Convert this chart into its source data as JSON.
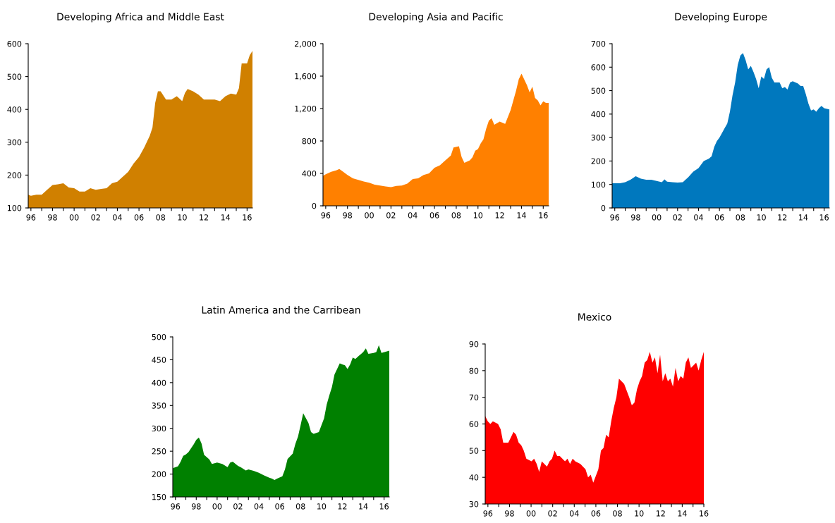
{
  "chart_data": [
    {
      "type": "area",
      "title": "Developing Africa and Middle East",
      "xlim": [
        1995.75,
        2016.5
      ],
      "ylim": [
        100,
        600
      ],
      "yticks": [
        100,
        200,
        300,
        400,
        500,
        600
      ],
      "xticks": [
        {
          "value": 1996,
          "label": "96"
        },
        {
          "value": 1997,
          "label": null
        },
        {
          "value": 1998,
          "label": "98"
        },
        {
          "value": 1999,
          "label": null
        },
        {
          "value": 2000,
          "label": "00"
        },
        {
          "value": 2001,
          "label": null
        },
        {
          "value": 2002,
          "label": "02"
        },
        {
          "value": 2003,
          "label": null
        },
        {
          "value": 2004,
          "label": "04"
        },
        {
          "value": 2005,
          "label": null
        },
        {
          "value": 2006,
          "label": "06"
        },
        {
          "value": 2007,
          "label": null
        },
        {
          "value": 2008,
          "label": "08"
        },
        {
          "value": 2009,
          "label": null
        },
        {
          "value": 2010,
          "label": "10"
        },
        {
          "value": 2011,
          "label": null
        },
        {
          "value": 2012,
          "label": "12"
        },
        {
          "value": 2013,
          "label": null
        },
        {
          "value": 2014,
          "label": "14"
        },
        {
          "value": 2015,
          "label": null
        },
        {
          "value": 2016,
          "label": "16"
        }
      ],
      "grid": false,
      "legend": false,
      "series": [
        {
          "color": "#d08000",
          "x": [
            1995.75,
            1996,
            1996.5,
            1997,
            1997.5,
            1998,
            1998.5,
            1999,
            1999.5,
            2000,
            2000.5,
            2001,
            2001.5,
            2002,
            2002.5,
            2003,
            2003.5,
            2004,
            2004.5,
            2005,
            2005.5,
            2006,
            2006.5,
            2007,
            2007.25,
            2007.5,
            2007.75,
            2008,
            2008.5,
            2009,
            2009.5,
            2010,
            2010.25,
            2010.5,
            2011,
            2011.5,
            2012,
            2012.5,
            2013,
            2013.5,
            2014,
            2014.5,
            2015,
            2015.25,
            2015.5,
            2016,
            2016.25,
            2016.5
          ],
          "values": [
            140,
            137,
            140,
            140,
            155,
            170,
            172,
            175,
            162,
            160,
            150,
            150,
            160,
            155,
            158,
            160,
            175,
            180,
            195,
            210,
            235,
            255,
            285,
            320,
            345,
            420,
            455,
            455,
            430,
            430,
            440,
            425,
            450,
            462,
            455,
            445,
            430,
            430,
            430,
            425,
            440,
            448,
            445,
            465,
            540,
            540,
            565,
            578
          ]
        }
      ]
    },
    {
      "type": "area",
      "title": "Developing Asia and Pacific",
      "xlim": [
        1995.75,
        2016.5
      ],
      "ylim": [
        0,
        2000
      ],
      "yticks": [
        0,
        400,
        800,
        {
          "value": 1200,
          "label": "1,200"
        },
        {
          "value": 1600,
          "label": "1,600"
        },
        {
          "value": 2000,
          "label": "2,000"
        }
      ],
      "xticks": [
        {
          "value": 1996,
          "label": "96"
        },
        {
          "value": 1997,
          "label": null
        },
        {
          "value": 1998,
          "label": "98"
        },
        {
          "value": 1999,
          "label": null
        },
        {
          "value": 2000,
          "label": "00"
        },
        {
          "value": 2001,
          "label": null
        },
        {
          "value": 2002,
          "label": "02"
        },
        {
          "value": 2003,
          "label": null
        },
        {
          "value": 2004,
          "label": "04"
        },
        {
          "value": 2005,
          "label": null
        },
        {
          "value": 2006,
          "label": "06"
        },
        {
          "value": 2007,
          "label": null
        },
        {
          "value": 2008,
          "label": "08"
        },
        {
          "value": 2009,
          "label": null
        },
        {
          "value": 2010,
          "label": "10"
        },
        {
          "value": 2011,
          "label": null
        },
        {
          "value": 2012,
          "label": "12"
        },
        {
          "value": 2013,
          "label": null
        },
        {
          "value": 2014,
          "label": "14"
        },
        {
          "value": 2015,
          "label": null
        },
        {
          "value": 2016,
          "label": "16"
        }
      ],
      "grid": false,
      "legend": false,
      "series": [
        {
          "color": "#ff8000",
          "x": [
            1995.75,
            1996,
            1996.5,
            1997,
            1997.25,
            1997.5,
            1998,
            1998.5,
            1999,
            1999.5,
            2000,
            2000.5,
            2001,
            2001.5,
            2002,
            2002.5,
            2003,
            2003.5,
            2004,
            2004.5,
            2005,
            2005.5,
            2006,
            2006.5,
            2007,
            2007.5,
            2007.75,
            2008.25,
            2008.5,
            2008.75,
            2009.25,
            2009.5,
            2009.75,
            2010,
            2010.25,
            2010.5,
            2010.75,
            2011,
            2011.25,
            2011.5,
            2012,
            2012.5,
            2013,
            2013.25,
            2013.5,
            2013.75,
            2014,
            2014.5,
            2014.75,
            2015,
            2015.25,
            2015.5,
            2015.75,
            2016,
            2016.25,
            2016.5
          ],
          "values": [
            370,
            390,
            420,
            440,
            455,
            430,
            380,
            340,
            320,
            300,
            285,
            260,
            250,
            240,
            230,
            245,
            250,
            275,
            330,
            340,
            380,
            400,
            470,
            500,
            560,
            620,
            720,
            735,
            600,
            530,
            560,
            600,
            680,
            700,
            770,
            820,
            950,
            1050,
            1080,
            1000,
            1040,
            1010,
            1180,
            1300,
            1420,
            1560,
            1630,
            1490,
            1400,
            1470,
            1330,
            1300,
            1240,
            1290,
            1270,
            1270
          ]
        }
      ]
    },
    {
      "type": "area",
      "title": "Developing Europe",
      "xlim": [
        1995.75,
        2016.5
      ],
      "ylim": [
        0,
        700
      ],
      "yticks": [
        0,
        100,
        200,
        300,
        400,
        500,
        600,
        700
      ],
      "xticks": [
        {
          "value": 1996,
          "label": "96"
        },
        {
          "value": 1997,
          "label": null
        },
        {
          "value": 1998,
          "label": "98"
        },
        {
          "value": 1999,
          "label": null
        },
        {
          "value": 2000,
          "label": "00"
        },
        {
          "value": 2001,
          "label": null
        },
        {
          "value": 2002,
          "label": "02"
        },
        {
          "value": 2003,
          "label": null
        },
        {
          "value": 2004,
          "label": "04"
        },
        {
          "value": 2005,
          "label": null
        },
        {
          "value": 2006,
          "label": "06"
        },
        {
          "value": 2007,
          "label": null
        },
        {
          "value": 2008,
          "label": "08"
        },
        {
          "value": 2009,
          "label": null
        },
        {
          "value": 2010,
          "label": "10"
        },
        {
          "value": 2011,
          "label": null
        },
        {
          "value": 2012,
          "label": "12"
        },
        {
          "value": 2013,
          "label": null
        },
        {
          "value": 2014,
          "label": "14"
        },
        {
          "value": 2015,
          "label": null
        },
        {
          "value": 2016,
          "label": "16"
        }
      ],
      "grid": false,
      "legend": false,
      "series": [
        {
          "color": "#0078be",
          "x": [
            1995.75,
            1996.5,
            1997,
            1997.5,
            1998,
            1998.5,
            1999,
            1999.5,
            2000,
            2000.5,
            2000.75,
            2001,
            2001.5,
            2002,
            2002.5,
            2003,
            2003.5,
            2004,
            2004.5,
            2005,
            2005.25,
            2005.5,
            2005.75,
            2006,
            2006.5,
            2006.75,
            2007,
            2007.25,
            2007.5,
            2007.75,
            2008,
            2008.25,
            2008.5,
            2008.75,
            2009,
            2009.25,
            2009.5,
            2009.75,
            2010,
            2010.25,
            2010.5,
            2010.75,
            2011,
            2011.25,
            2011.75,
            2012,
            2012.25,
            2012.5,
            2012.75,
            2013,
            2013.5,
            2013.75,
            2014,
            2014.25,
            2014.5,
            2014.75,
            2015,
            2015.25,
            2015.5,
            2015.75,
            2016,
            2016.5
          ],
          "values": [
            105,
            105,
            110,
            120,
            135,
            125,
            120,
            120,
            115,
            110,
            122,
            112,
            110,
            108,
            110,
            130,
            155,
            170,
            200,
            210,
            220,
            260,
            285,
            300,
            340,
            360,
            410,
            480,
            535,
            610,
            650,
            660,
            630,
            590,
            605,
            580,
            550,
            510,
            560,
            550,
            590,
            600,
            555,
            535,
            535,
            510,
            515,
            505,
            535,
            540,
            530,
            520,
            520,
            485,
            445,
            415,
            420,
            410,
            425,
            435,
            425,
            420
          ]
        }
      ]
    },
    {
      "type": "area",
      "title": "Latin America and the Carribean",
      "xlim": [
        1995.75,
        2016.5
      ],
      "ylim": [
        150,
        500
      ],
      "yticks": [
        150,
        200,
        250,
        300,
        350,
        400,
        450,
        500
      ],
      "xticks": [
        {
          "value": 1996,
          "label": "96"
        },
        {
          "value": 1997,
          "label": null
        },
        {
          "value": 1998,
          "label": "98"
        },
        {
          "value": 1999,
          "label": null
        },
        {
          "value": 2000,
          "label": "00"
        },
        {
          "value": 2001,
          "label": null
        },
        {
          "value": 2002,
          "label": "02"
        },
        {
          "value": 2003,
          "label": null
        },
        {
          "value": 2004,
          "label": "04"
        },
        {
          "value": 2005,
          "label": null
        },
        {
          "value": 2006,
          "label": "06"
        },
        {
          "value": 2007,
          "label": null
        },
        {
          "value": 2008,
          "label": "08"
        },
        {
          "value": 2009,
          "label": null
        },
        {
          "value": 2010,
          "label": "10"
        },
        {
          "value": 2011,
          "label": null
        },
        {
          "value": 2012,
          "label": "12"
        },
        {
          "value": 2013,
          "label": null
        },
        {
          "value": 2014,
          "label": "14"
        },
        {
          "value": 2015,
          "label": null
        },
        {
          "value": 2016,
          "label": "16"
        }
      ],
      "grid": false,
      "legend": false,
      "series": [
        {
          "color": "#008000",
          "x": [
            1995.75,
            1996.25,
            1996.5,
            1996.75,
            1997,
            1997.25,
            1997.75,
            1998,
            1998.25,
            1998.5,
            1998.75,
            1999,
            1999.25,
            1999.5,
            2000,
            2000.5,
            2001,
            2001.25,
            2001.5,
            2002,
            2002.25,
            2002.75,
            2003,
            2003.5,
            2004,
            2004.5,
            2005,
            2005.25,
            2005.5,
            2005.75,
            2006.25,
            2006.5,
            2006.75,
            2007.25,
            2007.5,
            2007.75,
            2008,
            2008.25,
            2008.75,
            2009,
            2009.25,
            2009.75,
            2010,
            2010.25,
            2010.5,
            2010.75,
            2011,
            2011.25,
            2011.5,
            2011.75,
            2012,
            2012.25,
            2012.5,
            2012.75,
            2013,
            2013.25,
            2013.75,
            2014,
            2014.25,
            2014.5,
            2015,
            2015.25,
            2015.5,
            2015.75,
            2016.5
          ],
          "values": [
            213,
            217,
            227,
            240,
            243,
            248,
            265,
            275,
            280,
            267,
            242,
            237,
            232,
            222,
            225,
            222,
            215,
            225,
            227,
            218,
            215,
            208,
            210,
            207,
            203,
            197,
            192,
            190,
            187,
            190,
            195,
            210,
            233,
            245,
            266,
            282,
            307,
            333,
            312,
            292,
            288,
            292,
            307,
            322,
            352,
            372,
            390,
            418,
            430,
            442,
            440,
            438,
            430,
            440,
            455,
            452,
            462,
            467,
            475,
            463,
            465,
            467,
            482,
            465,
            470
          ]
        }
      ]
    },
    {
      "type": "area",
      "title": "Mexico",
      "xlim": [
        1995.75,
        2016.0
      ],
      "ylim": [
        30,
        90
      ],
      "yticks": [
        30,
        40,
        50,
        60,
        70,
        80,
        90
      ],
      "xticks": [
        {
          "value": 1996,
          "label": "96"
        },
        {
          "value": 1997,
          "label": null
        },
        {
          "value": 1998,
          "label": "98"
        },
        {
          "value": 1999,
          "label": null
        },
        {
          "value": 2000,
          "label": "00"
        },
        {
          "value": 2001,
          "label": null
        },
        {
          "value": 2002,
          "label": "02"
        },
        {
          "value": 2003,
          "label": null
        },
        {
          "value": 2004,
          "label": "04"
        },
        {
          "value": 2005,
          "label": null
        },
        {
          "value": 2006,
          "label": "06"
        },
        {
          "value": 2007,
          "label": null
        },
        {
          "value": 2008,
          "label": "08"
        },
        {
          "value": 2009,
          "label": null
        },
        {
          "value": 2010,
          "label": "10"
        },
        {
          "value": 2011,
          "label": null
        },
        {
          "value": 2012,
          "label": "12"
        },
        {
          "value": 2013,
          "label": null
        },
        {
          "value": 2014,
          "label": "14"
        },
        {
          "value": 2015,
          "label": null
        },
        {
          "value": 2016,
          "label": "16"
        }
      ],
      "grid": false,
      "legend": false,
      "series": [
        {
          "color": "#ff0000",
          "x": [
            1995.75,
            1995.99,
            1996.23,
            1996.46,
            1996.94,
            1997.18,
            1997.42,
            1997.89,
            1998.13,
            1998.37,
            1998.61,
            1998.85,
            1999.09,
            1999.32,
            1999.56,
            2000.04,
            2000.28,
            2000.52,
            2000.75,
            2000.99,
            2001.47,
            2001.71,
            2001.94,
            2002.18,
            2002.42,
            2002.66,
            2002.9,
            2003.14,
            2003.37,
            2003.61,
            2003.85,
            2004.09,
            2004.57,
            2004.8,
            2005.04,
            2005.28,
            2005.52,
            2005.76,
            2006.23,
            2006.47,
            2006.71,
            2006.95,
            2007.19,
            2007.42,
            2007.66,
            2007.9,
            2008.14,
            2008.62,
            2009.09,
            2009.33,
            2009.57,
            2009.81,
            2010.05,
            2010.28,
            2010.52,
            2010.76,
            2011.0,
            2011.24,
            2011.47,
            2011.71,
            2011.95,
            2012.19,
            2012.43,
            2012.67,
            2012.9,
            2013.14,
            2013.38,
            2013.62,
            2013.86,
            2014.1,
            2014.33,
            2014.57,
            2014.81,
            2015.05,
            2015.29,
            2015.52,
            2015.76,
            2016.0
          ],
          "values": [
            63,
            61,
            60,
            61,
            60,
            58,
            53,
            53,
            55,
            57,
            56,
            53,
            52,
            50,
            47,
            46,
            47,
            45,
            42,
            46,
            44,
            46,
            47,
            50,
            48,
            48,
            47,
            46,
            47,
            45,
            47,
            46,
            45,
            44,
            43,
            40,
            41,
            38,
            43,
            50,
            51,
            56,
            55,
            61,
            66,
            70,
            77,
            75,
            70,
            67,
            68,
            73,
            76,
            78,
            83,
            84,
            87,
            83,
            85,
            79,
            86,
            76,
            79,
            76,
            77,
            74,
            81,
            76,
            78,
            77,
            83,
            85,
            81,
            82,
            83,
            80,
            84,
            87
          ]
        }
      ]
    }
  ]
}
